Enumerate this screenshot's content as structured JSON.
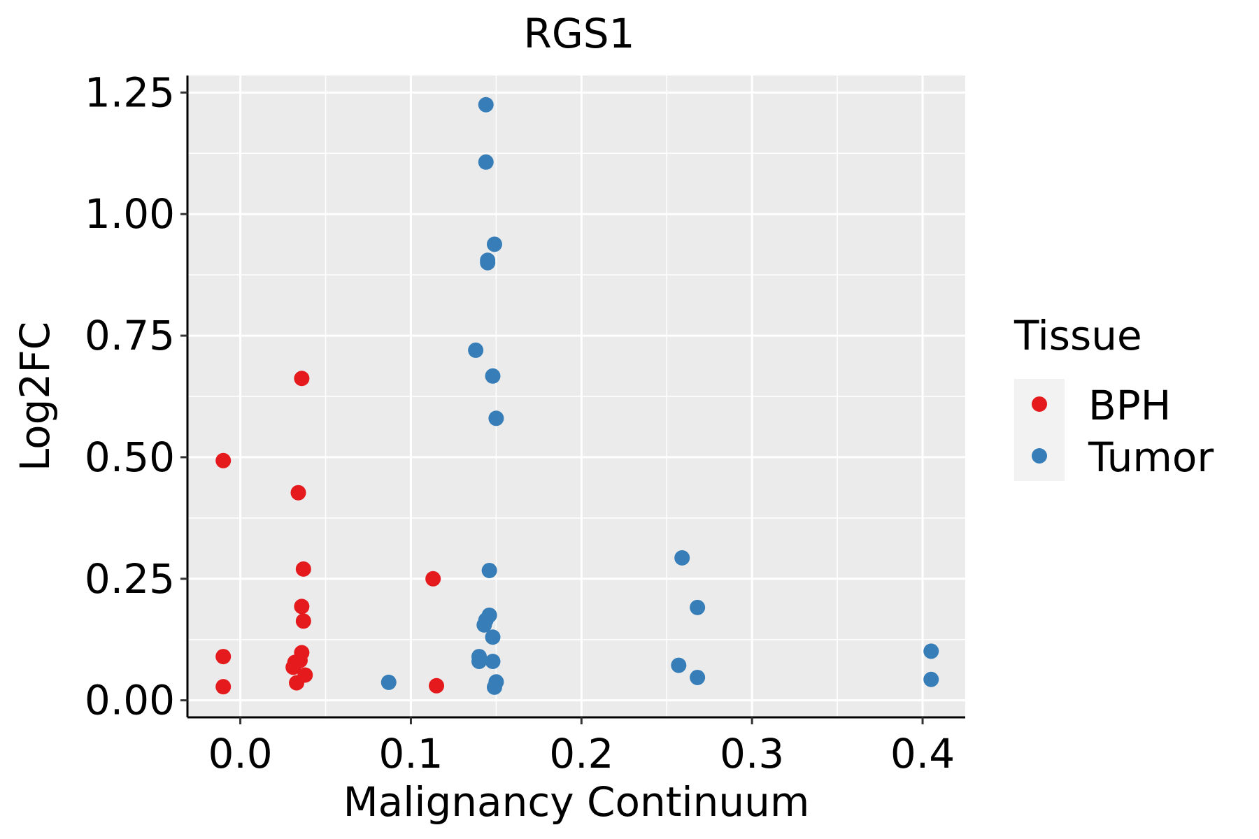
{
  "chart_data": {
    "type": "scatter",
    "title": "RGS1",
    "xlabel": "Malignancy Continuum",
    "ylabel": "Log2FC",
    "xlim": [
      -0.031,
      0.425
    ],
    "ylim": [
      -0.035,
      1.285
    ],
    "x_ticks": [
      0.0,
      0.1,
      0.2,
      0.3,
      0.4
    ],
    "x_tick_labels": [
      "0.0",
      "0.1",
      "0.2",
      "0.3",
      "0.4"
    ],
    "y_ticks": [
      0.0,
      0.25,
      0.5,
      0.75,
      1.0,
      1.25
    ],
    "y_tick_labels": [
      "0.00",
      "0.25",
      "0.50",
      "0.75",
      "1.00",
      "1.25"
    ],
    "grid": true,
    "legend": {
      "title": "Tissue",
      "position": "right"
    },
    "series": [
      {
        "name": "BPH",
        "color": "#E41A1C",
        "points": [
          [
            -0.01,
            0.493
          ],
          [
            -0.01,
            0.09
          ],
          [
            -0.01,
            0.028
          ],
          [
            0.036,
            0.662
          ],
          [
            0.034,
            0.427
          ],
          [
            0.037,
            0.27
          ],
          [
            0.036,
            0.193
          ],
          [
            0.037,
            0.163
          ],
          [
            0.036,
            0.098
          ],
          [
            0.032,
            0.078
          ],
          [
            0.035,
            0.082
          ],
          [
            0.031,
            0.068
          ],
          [
            0.038,
            0.052
          ],
          [
            0.033,
            0.036
          ],
          [
            0.113,
            0.25
          ],
          [
            0.115,
            0.03
          ]
        ]
      },
      {
        "name": "Tumor",
        "color": "#377EB8",
        "points": [
          [
            0.144,
            1.225
          ],
          [
            0.144,
            1.107
          ],
          [
            0.149,
            0.938
          ],
          [
            0.145,
            0.905
          ],
          [
            0.145,
            0.9
          ],
          [
            0.138,
            0.72
          ],
          [
            0.148,
            0.667
          ],
          [
            0.15,
            0.58
          ],
          [
            0.146,
            0.267
          ],
          [
            0.146,
            0.175
          ],
          [
            0.144,
            0.165
          ],
          [
            0.143,
            0.155
          ],
          [
            0.148,
            0.13
          ],
          [
            0.14,
            0.09
          ],
          [
            0.14,
            0.08
          ],
          [
            0.148,
            0.08
          ],
          [
            0.15,
            0.038
          ],
          [
            0.149,
            0.027
          ],
          [
            0.087,
            0.037
          ],
          [
            0.259,
            0.293
          ],
          [
            0.268,
            0.191
          ],
          [
            0.257,
            0.072
          ],
          [
            0.268,
            0.047
          ],
          [
            0.405,
            0.101
          ],
          [
            0.405,
            0.043
          ]
        ]
      }
    ]
  }
}
